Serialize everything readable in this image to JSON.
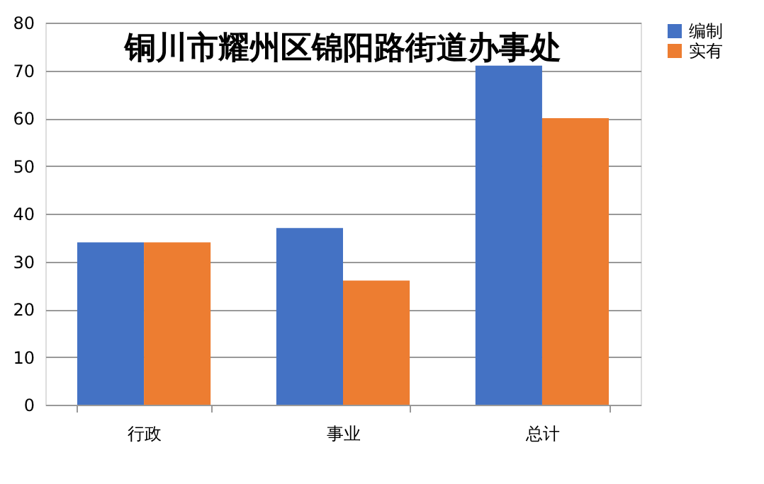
{
  "chart_data": {
    "type": "bar",
    "title": "铜川市耀州区锦阳路街道办事处",
    "categories": [
      "行政",
      "事业",
      "总计"
    ],
    "series": [
      {
        "name": "编制",
        "color": "#4472c4",
        "values": [
          34,
          37,
          71
        ]
      },
      {
        "name": "实有",
        "color": "#ed7d31",
        "values": [
          34,
          26,
          60
        ]
      }
    ],
    "ylim": [
      0,
      80
    ],
    "yticks": [
      0,
      10,
      20,
      30,
      40,
      50,
      60,
      70,
      80
    ],
    "grid": "y",
    "legend": "right"
  }
}
